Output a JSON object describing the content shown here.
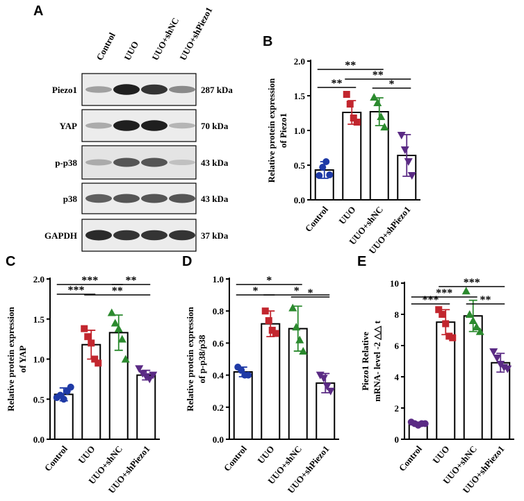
{
  "blot": {
    "panel": "A",
    "lanes": [
      "Control",
      "UUO",
      "UUO+shNC",
      "UUO+shPiezo1"
    ],
    "rows": [
      {
        "label": "Piezo1",
        "size": "287 kDa"
      },
      {
        "label": "YAP",
        "size": "70 kDa"
      },
      {
        "label": "p-p38",
        "size": "43 kDa"
      },
      {
        "label": "p38",
        "size": "43 kDa"
      },
      {
        "label": "GAPDH",
        "size": "37 kDa"
      }
    ]
  },
  "chart_data": [
    {
      "type": "bar",
      "panel": "B",
      "ylabel": [
        "Relative protein expression",
        "of  Piezo1"
      ],
      "categories": [
        "Control",
        "UUO",
        "UUO+shNC",
        "UUO+shPiezo1"
      ],
      "values": [
        0.43,
        1.26,
        1.27,
        0.64
      ],
      "errors": [
        0.12,
        0.17,
        0.2,
        0.3
      ],
      "points": [
        [
          0.35,
          0.47,
          0.55,
          0.36
        ],
        [
          1.52,
          1.38,
          1.18,
          1.12
        ],
        [
          1.48,
          1.4,
          1.2,
          1.05
        ],
        [
          0.93,
          0.72,
          0.55,
          0.35
        ]
      ],
      "colors": [
        "#1f3aa6",
        "#c2262e",
        "#2b8a2e",
        "#5a2a84"
      ],
      "markers": [
        "circle",
        "square",
        "triangle",
        "triangle-down"
      ],
      "ylim": [
        0,
        2
      ],
      "yticks": [
        {
          "value": 0,
          "label": "0.0"
        },
        0.5,
        {
          "value": 1,
          "label": "1.0"
        },
        1.5,
        {
          "value": 2,
          "label": "2.0"
        }
      ],
      "brackets": [
        {
          "from": 0,
          "to": 2,
          "label": "**"
        },
        {
          "from": 1,
          "to": 3,
          "label": "**"
        },
        {
          "from": 0,
          "to": 1,
          "label": "**"
        },
        {
          "from": 2,
          "to": 3,
          "label": "*"
        }
      ]
    },
    {
      "type": "bar",
      "panel": "C",
      "ylabel": [
        "Relative protein expression",
        "of YAP"
      ],
      "categories": [
        "Control",
        "UUO",
        "UUO+shNC",
        "UUO+shPiezo1"
      ],
      "values": [
        0.56,
        1.18,
        1.33,
        0.8
      ],
      "errors": [
        0.08,
        0.18,
        0.22,
        0.06
      ],
      "points": [
        [
          0.52,
          0.55,
          0.5,
          0.6,
          0.65
        ],
        [
          1.38,
          1.28,
          1.2,
          1.0,
          0.95
        ],
        [
          1.58,
          1.45,
          1.38,
          1.25,
          1.0
        ],
        [
          0.88,
          0.82,
          0.78,
          0.75,
          0.8
        ]
      ],
      "colors": [
        "#1f3aa6",
        "#c2262e",
        "#2b8a2e",
        "#5a2a84"
      ],
      "markers": [
        "circle",
        "square",
        "triangle",
        "triangle-down"
      ],
      "ylim": [
        0,
        2
      ],
      "yticks": [
        {
          "value": 0,
          "label": "0.0"
        },
        0.5,
        {
          "value": 1,
          "label": "1.0"
        },
        1.5,
        {
          "value": 2,
          "label": "2.0"
        }
      ],
      "brackets": [
        {
          "from": 0,
          "to": 2,
          "label": "***"
        },
        {
          "from": 2,
          "to": 3,
          "label": "**"
        },
        {
          "from": 0,
          "to": 1,
          "label": "***"
        },
        {
          "from": 1,
          "to": 3,
          "label": "**"
        }
      ]
    },
    {
      "type": "bar",
      "panel": "D",
      "ylabel": [
        "Relative protein expression",
        "of  p-p38/p38"
      ],
      "categories": [
        "Control",
        "UUO",
        "UUO+shNC",
        "UUO+shPiezo1"
      ],
      "values": [
        0.42,
        0.72,
        0.69,
        0.35
      ],
      "errors": [
        0.03,
        0.08,
        0.14,
        0.06
      ],
      "points": [
        [
          0.45,
          0.43,
          0.4,
          0.4
        ],
        [
          0.8,
          0.74,
          0.68,
          0.66
        ],
        [
          0.82,
          0.7,
          0.62,
          0.55
        ],
        [
          0.4,
          0.38,
          0.33,
          0.3
        ]
      ],
      "colors": [
        "#1f3aa6",
        "#c2262e",
        "#2b8a2e",
        "#5a2a84"
      ],
      "markers": [
        "circle",
        "square",
        "triangle",
        "triangle-down"
      ],
      "ylim": [
        0,
        1
      ],
      "yticks": [
        {
          "value": 0,
          "label": "0.0"
        },
        0.2,
        0.4,
        0.6,
        0.8,
        {
          "value": 1,
          "label": "1.0"
        }
      ],
      "brackets": [
        {
          "from": 0,
          "to": 2,
          "label": "*"
        },
        {
          "from": 0,
          "to": 1,
          "label": "*"
        },
        {
          "from": 1,
          "to": 3,
          "label": "*"
        },
        {
          "from": 2,
          "to": 3,
          "label": "*"
        }
      ]
    },
    {
      "type": "bar",
      "panel": "E",
      "ylabel": [
        "Piezo1  Relative",
        "mRNA- level -2 △△ t"
      ],
      "categories": [
        "Control",
        "UUO",
        "UUO+shNC",
        "UUO+shPiezo1"
      ],
      "values": [
        1.0,
        7.5,
        7.9,
        4.9
      ],
      "errors": [
        0.1,
        0.8,
        1.0,
        0.6
      ],
      "points": [
        [
          1.1,
          1.0,
          0.9,
          1.0,
          1.0
        ],
        [
          8.3,
          8.0,
          7.4,
          6.6,
          6.5
        ],
        [
          9.5,
          8.0,
          7.6,
          7.2,
          6.9
        ],
        [
          5.6,
          5.2,
          4.8,
          4.6,
          4.5
        ]
      ],
      "colors": [
        "#5a2a84",
        "#c2262e",
        "#2b8a2e",
        "#5a2a84"
      ],
      "markers": [
        "circle",
        "square",
        "triangle",
        "triangle-down"
      ],
      "ylim": [
        0,
        10
      ],
      "yticks": [
        0,
        2,
        4,
        6,
        8,
        10
      ],
      "brackets": [
        {
          "from": 1,
          "to": 3,
          "label": "***"
        },
        {
          "from": 0,
          "to": 2,
          "label": "***"
        },
        {
          "from": 2,
          "to": 3,
          "label": "**"
        },
        {
          "from": 0,
          "to": 1,
          "label": "***"
        }
      ]
    }
  ]
}
